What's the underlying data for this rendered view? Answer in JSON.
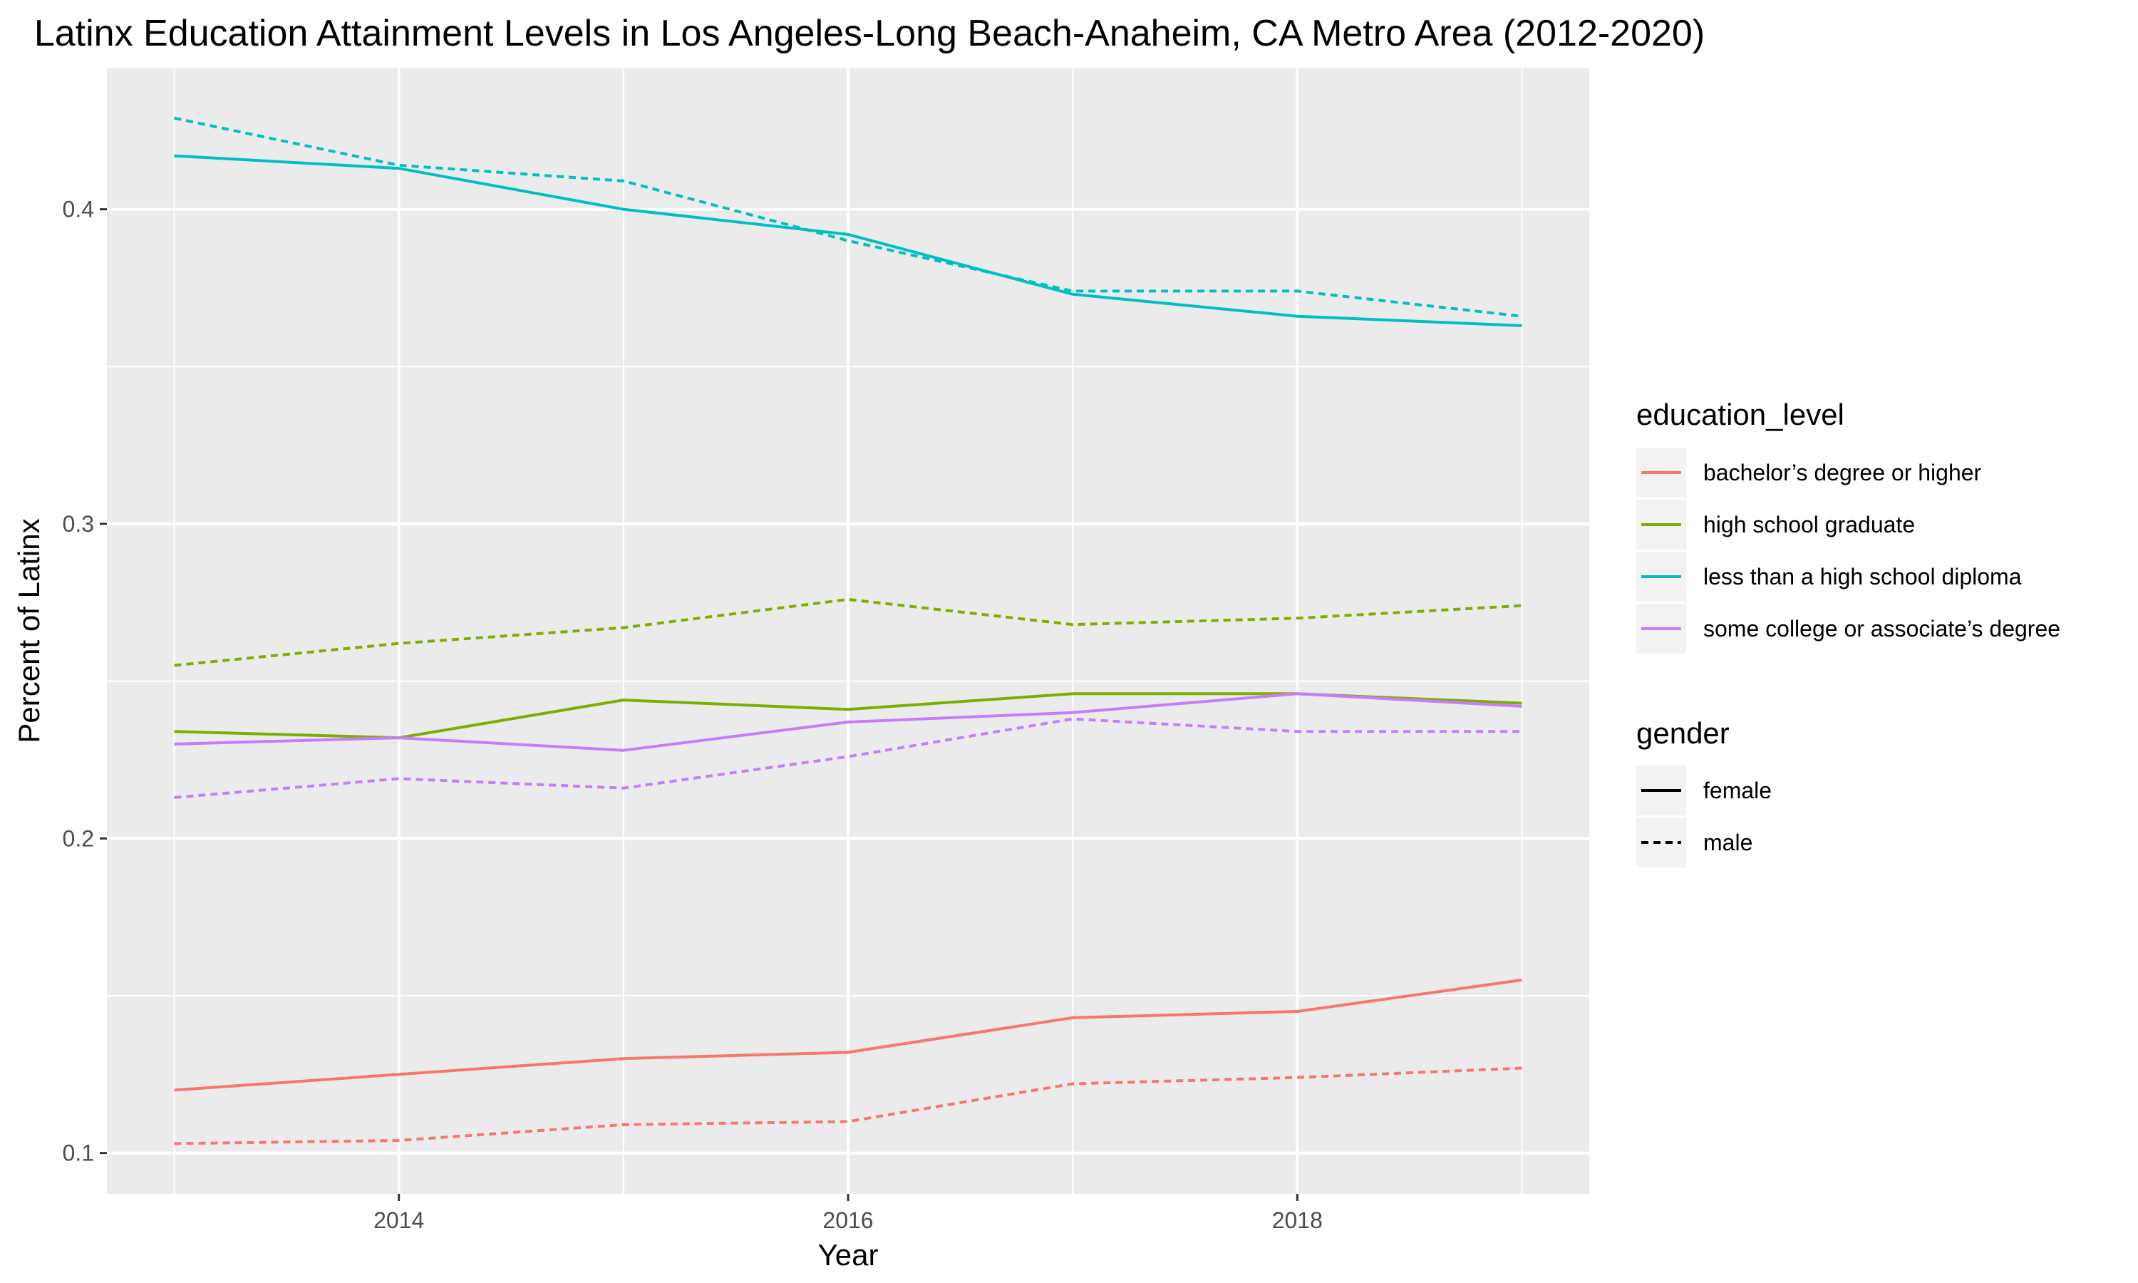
{
  "chart_data": {
    "type": "line",
    "title": "Latinx Education Attainment Levels in Los Angeles-Long Beach-Anaheim, CA Metro Area (2012-2020)",
    "xlabel": "Year",
    "ylabel": "Percent of Latinx",
    "xlim": [
      2012.7,
      2019.3
    ],
    "ylim": [
      0.087,
      0.445
    ],
    "x_ticks": [
      2014,
      2016,
      2018
    ],
    "y_ticks": [
      0.1,
      0.2,
      0.3,
      0.4
    ],
    "x_tick_labels": [
      "2014",
      "2016",
      "2018"
    ],
    "y_tick_labels": [
      "0.1",
      "0.2",
      "0.3",
      "0.4"
    ],
    "grid": true,
    "legend_placement": "right",
    "panel_background": "#EBEBEB",
    "x": [
      2013,
      2014,
      2015,
      2016,
      2017,
      2018,
      2019
    ],
    "series": [
      {
        "education_level": "bachelor's degree or higher",
        "gender": "female",
        "values": [
          0.12,
          0.125,
          0.13,
          0.132,
          0.143,
          0.145,
          0.155
        ]
      },
      {
        "education_level": "bachelor's degree or higher",
        "gender": "male",
        "values": [
          0.103,
          0.104,
          0.109,
          0.11,
          0.122,
          0.124,
          0.127
        ]
      },
      {
        "education_level": "high school graduate",
        "gender": "female",
        "values": [
          0.234,
          0.232,
          0.244,
          0.241,
          0.246,
          0.246,
          0.243
        ]
      },
      {
        "education_level": "high school graduate",
        "gender": "male",
        "values": [
          0.255,
          0.262,
          0.267,
          0.276,
          0.268,
          0.27,
          0.274
        ]
      },
      {
        "education_level": "less than a high school diploma",
        "gender": "female",
        "values": [
          0.417,
          0.413,
          0.4,
          0.392,
          0.373,
          0.366,
          0.363
        ]
      },
      {
        "education_level": "less than a high school diploma",
        "gender": "male",
        "values": [
          0.429,
          0.414,
          0.409,
          0.39,
          0.374,
          0.374,
          0.366
        ]
      },
      {
        "education_level": "some college or associate's degree",
        "gender": "female",
        "values": [
          0.23,
          0.232,
          0.228,
          0.237,
          0.24,
          0.246,
          0.242
        ]
      },
      {
        "education_level": "some college or associate's degree",
        "gender": "male",
        "values": [
          0.213,
          0.219,
          0.216,
          0.226,
          0.238,
          0.234,
          0.234
        ]
      }
    ],
    "legend": {
      "color": {
        "title": "education_level",
        "entries": [
          {
            "label": "bachelor’s degree or higher",
            "key": "bachelor's degree or higher",
            "color": "#F8766D"
          },
          {
            "label": "high school graduate",
            "key": "high school graduate",
            "color": "#7CAE00"
          },
          {
            "label": "less than a high school diploma",
            "key": "less than a high school diploma",
            "color": "#00BFC4"
          },
          {
            "label": "some college or associate’s degree",
            "key": "some college or associate's degree",
            "color": "#C77CFF"
          }
        ]
      },
      "linetype": {
        "title": "gender",
        "entries": [
          {
            "label": "female",
            "key": "female",
            "dash": "solid"
          },
          {
            "label": "male",
            "key": "male",
            "dash": "dotted"
          }
        ]
      }
    }
  }
}
